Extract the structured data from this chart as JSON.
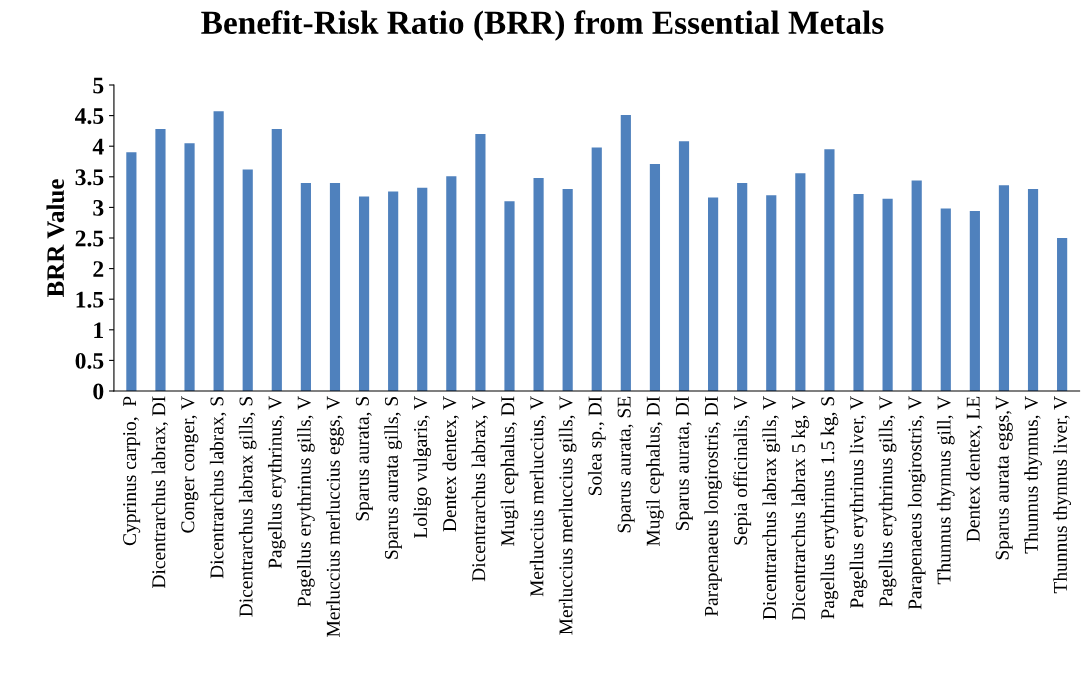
{
  "chart_data": {
    "type": "bar",
    "title": "Benefit-Risk Ratio (BRR) from Essential Metals",
    "ylabel": "BRR Value",
    "categories": [
      "Cyprinus carpio,  P",
      "Dicentrarchus labrax, DI",
      "Conger conger, V",
      "Dicentrarchus labrax, S",
      "Dicentrarchus labrax gills, S",
      "Pagellus erythrinus, V",
      "Pagellus erythrinus gills, V",
      "Merluccius merluccius eggs, V",
      "Sparus aurata, S",
      "Sparus aurata gills, S",
      "Loligo vulgaris, V",
      "Dentex dentex, V",
      "Dicentrarchus labrax, V",
      "Mugil cephalus, DI",
      "Merluccius merluccius, V",
      "Merluccius merluccius gills, V",
      "Solea sp., DI",
      "Sparus aurata, SE",
      "Mugil cephalus, DI",
      "Sparus aurata, DI",
      "Parapenaeus longirostris, DI",
      "Sepia officinalis, V",
      "Dicentrarchus labrax gills, V",
      "Dicentrarchus labrax 5 kg, V",
      "Pagellus erythrinus 1.5 kg, S",
      "Pagellus erythrinus liver, V",
      "Pagellus erythrinus gills, V",
      "Parapenaeus longirostris, V",
      "Thunnus thynnus gill, V",
      "Dentex dentex, LE",
      "Sparus aurata eggs,V",
      "Thunnus thynnus, V",
      "Thunnus thynnus liver, V"
    ],
    "values": [
      3.9,
      4.28,
      4.05,
      4.57,
      3.62,
      4.28,
      3.4,
      3.4,
      3.18,
      3.26,
      3.32,
      3.51,
      4.2,
      3.1,
      3.48,
      3.3,
      3.98,
      4.51,
      3.71,
      4.08,
      3.16,
      3.4,
      3.2,
      3.56,
      3.95,
      3.22,
      3.14,
      3.44,
      2.98,
      2.94,
      3.36,
      3.3,
      2.5
    ],
    "color": "#4f81bd",
    "ylim": [
      0,
      5
    ],
    "yticks": [
      0,
      0.5,
      1,
      1.5,
      2,
      2.5,
      3,
      3.5,
      4,
      4.5,
      5
    ],
    "grid": false
  }
}
